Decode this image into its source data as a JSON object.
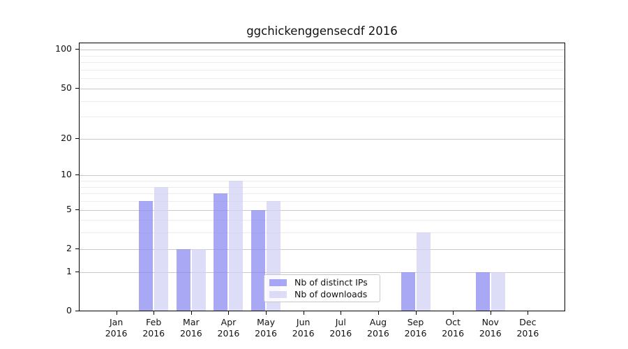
{
  "chart_data": {
    "type": "bar",
    "title": "ggchickenggensecdf 2016",
    "x_year": "2016",
    "categories": [
      "Jan",
      "Feb",
      "Mar",
      "Apr",
      "May",
      "Jun",
      "Jul",
      "Aug",
      "Sep",
      "Oct",
      "Nov",
      "Dec"
    ],
    "series": [
      {
        "name": "Nb of distinct IPs",
        "color": "#8b8bf2",
        "alpha": 0.75,
        "values": [
          0,
          6,
          2,
          7,
          5,
          0,
          0,
          0,
          1,
          0,
          1,
          0
        ]
      },
      {
        "name": "Nb of downloads",
        "color": "#d2d2f6",
        "alpha": 0.75,
        "values": [
          0,
          8,
          2,
          9,
          6,
          0,
          0,
          0,
          3,
          0,
          1,
          0
        ]
      }
    ],
    "yscale": "log1p",
    "ytick_labels": [
      "0",
      "1",
      "2",
      "5",
      "10",
      "20",
      "50",
      "100"
    ],
    "ytick_values": [
      0,
      1,
      2,
      5,
      10,
      20,
      50,
      100
    ],
    "major_gridlines": [
      1,
      2,
      5,
      10,
      20,
      50,
      100
    ],
    "minor_gridlines": [
      3,
      4,
      6,
      7,
      8,
      9,
      30,
      40,
      60,
      70,
      80,
      90
    ],
    "ylim": [
      0,
      114
    ],
    "grid": true,
    "legend_position": "inside lower-center",
    "colors": {
      "major_grid": "#c9c9c9",
      "minor_grid": "#ececec",
      "spine": "#000000",
      "text": "#111111"
    }
  }
}
